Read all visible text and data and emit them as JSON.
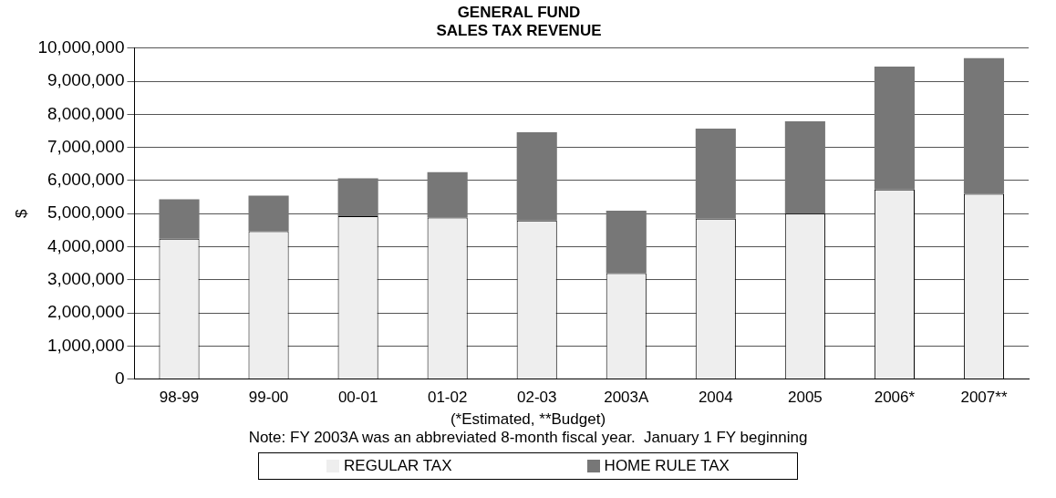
{
  "chart_data": {
    "type": "bar",
    "title": "GENERAL FUND\nSALES TAX REVENUE",
    "ylabel": "$",
    "stacked": true,
    "categories": [
      "98-99",
      "99-00",
      "00-01",
      "01-02",
      "02-03",
      "2003A",
      "2004",
      "2005",
      "2006*",
      "2007**"
    ],
    "series": [
      {
        "name": "REGULAR TAX",
        "color": "#eeeeee",
        "values": [
          4240000,
          4470000,
          4920000,
          4880000,
          4790000,
          3200000,
          4850000,
          5000000,
          5730000,
          5600000
        ]
      },
      {
        "name": "HOME RULE TAX",
        "color": "#777777",
        "values": [
          1190000,
          1070000,
          1150000,
          1370000,
          2670000,
          1890000,
          2720000,
          2790000,
          3710000,
          4100000
        ]
      }
    ],
    "ylim": [
      0,
      10000000
    ],
    "yticks": [
      0,
      {
        "value": 1000000,
        "label": "1,000,000"
      },
      {
        "value": 2000000,
        "label": "2,000,000"
      },
      {
        "value": 3000000,
        "label": "3,000,000"
      },
      {
        "value": 4000000,
        "label": "4,000,000"
      },
      {
        "value": 5000000,
        "label": "5,000,000"
      },
      {
        "value": 6000000,
        "label": "6,000,000"
      },
      {
        "value": 7000000,
        "label": "7,000,000"
      },
      {
        "value": 8000000,
        "label": "8,000,000"
      },
      {
        "value": 9000000,
        "label": "9,000,000"
      },
      {
        "value": 10000000,
        "label": "10,000,000"
      }
    ],
    "grid": "y",
    "legend": "bottom",
    "annotations": [
      "(*Estimated, **Budget)",
      "Note: FY 2003A was an abbreviated 8-month fiscal year.  January 1 FY beginning"
    ]
  }
}
